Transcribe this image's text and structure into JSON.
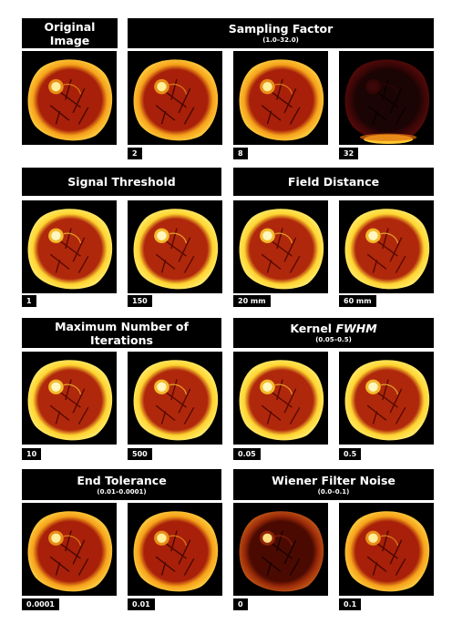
{
  "headers": {
    "original": {
      "line1": "Original",
      "line2": "Image"
    },
    "sampling": {
      "title": "Sampling Factor",
      "range": "(1.0–32.0)"
    },
    "signal": {
      "title": "Signal Threshold"
    },
    "field": {
      "title": "Field Distance"
    },
    "maxiter": {
      "line1": "Maximum Number of",
      "line2": "Iterations"
    },
    "kernel": {
      "title": "Kernel",
      "title_italic": "FWHM",
      "range": "(0.05–0.5)"
    },
    "endtol": {
      "title": "End Tolerance",
      "range": "(0.01–0.0001)"
    },
    "wiener": {
      "title": "Wiener Filter Noise",
      "range": "(0.0–0.1)"
    }
  },
  "labels": {
    "sampling_2": "2",
    "sampling_8": "8",
    "sampling_32": "32",
    "signal_1": "1",
    "signal_150": "150",
    "field_20": "20 mm",
    "field_60": "60 mm",
    "maxiter_10": "10",
    "maxiter_500": "500",
    "kernel_005": "0.05",
    "kernel_05": "0.5",
    "endtol_00001": "0.0001",
    "endtol_001": "0.01",
    "wiener_0": "0",
    "wiener_01": "0.1"
  },
  "colors": {
    "background": "#000000",
    "tissue_bright": "#ffd84a",
    "tissue_mid": "#f07a10",
    "muscle": "#a01a08",
    "header_bg": "#000000",
    "header_text": "#ffffff"
  }
}
